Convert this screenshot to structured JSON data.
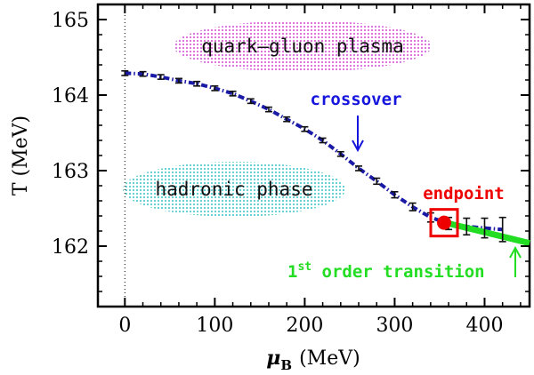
{
  "chart_data": {
    "type": "line",
    "xlabel": "μ",
    "xlabel_sub": "B",
    "xlabel_unit": "(MeV)",
    "ylabel": "T (MeV)",
    "xlim": [
      -30,
      450
    ],
    "ylim": [
      161.2,
      165.2
    ],
    "x_ticks": [
      0,
      100,
      200,
      300,
      400
    ],
    "x_tick_labels": [
      "0",
      "100",
      "200",
      "300",
      "400"
    ],
    "y_ticks": [
      162,
      163,
      164,
      165
    ],
    "y_tick_labels": [
      "162",
      "163",
      "164",
      "165"
    ],
    "grid": false,
    "legend": "none",
    "reference_line_x": 0,
    "series": [
      {
        "style": "dash-dot",
        "color": "#1a1aa6",
        "x": [
          0,
          20,
          40,
          60,
          80,
          100,
          120,
          140,
          160,
          180,
          200,
          220,
          240,
          260,
          280,
          300,
          320,
          340,
          360,
          380,
          400,
          420
        ],
        "y": [
          164.29,
          164.28,
          164.24,
          164.19,
          164.15,
          164.09,
          164.02,
          163.92,
          163.81,
          163.68,
          163.55,
          163.4,
          163.22,
          163.03,
          162.86,
          162.68,
          162.52,
          162.38,
          162.3,
          162.26,
          162.24,
          162.22
        ],
        "err": [
          0.03,
          0.03,
          0.03,
          0.03,
          0.03,
          0.03,
          0.03,
          0.03,
          0.03,
          0.03,
          0.03,
          0.03,
          0.03,
          0.03,
          0.04,
          0.04,
          0.05,
          0.06,
          0.08,
          0.11,
          0.13,
          0.16
        ]
      },
      {
        "style": "solid",
        "color": "#22dd22",
        "x": [
          360,
          450
        ],
        "y": [
          162.3,
          162.04
        ]
      }
    ],
    "endpoint": {
      "x": 355,
      "y": 162.31,
      "color": "#ee0000"
    },
    "annotations": {
      "qgp": "quark–gluon plasma",
      "hadronic": "hadronic phase",
      "crossover": "crossover",
      "endpoint": "endpoint",
      "first_order_pre": "1",
      "first_order_sup": "st",
      "first_order_post": " order transition"
    },
    "colors": {
      "qgp": "#cc33cc",
      "hadronic": "#22bbbb",
      "crossover": "#1515dd",
      "endpoint": "#ee0000",
      "first_order": "#22dd22"
    }
  }
}
